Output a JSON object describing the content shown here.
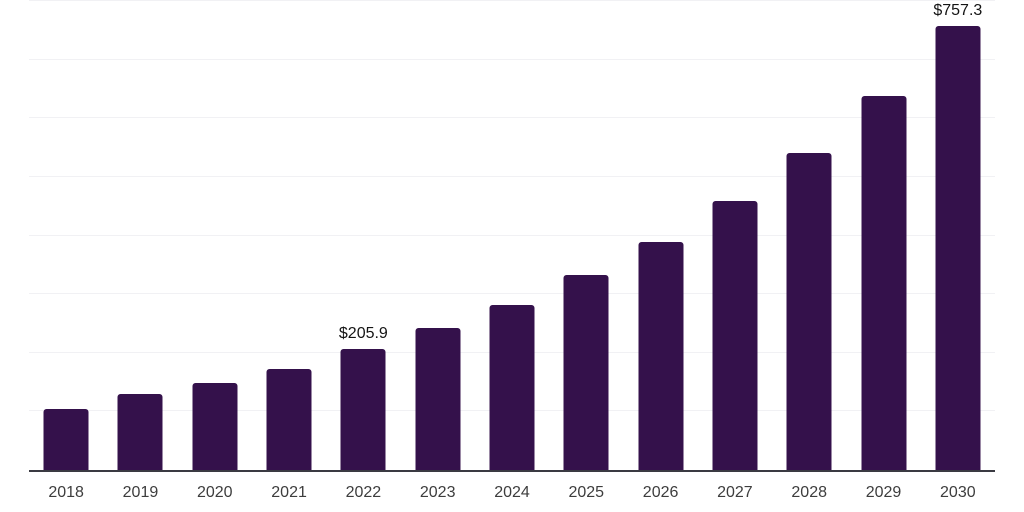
{
  "chart_data": {
    "type": "bar",
    "title": "",
    "xlabel": "",
    "ylabel": "",
    "categories": [
      "2018",
      "2019",
      "2020",
      "2021",
      "2022",
      "2023",
      "2024",
      "2025",
      "2026",
      "2027",
      "2028",
      "2029",
      "2030"
    ],
    "values": [
      104.0,
      129.6,
      147.9,
      171.7,
      205.9,
      241.7,
      280.9,
      332.1,
      388.9,
      458.8,
      540.1,
      637.9,
      757.3
    ],
    "value_labels": [
      {
        "category": "2022",
        "text": "$205.9"
      },
      {
        "category": "2030",
        "text": "$757.3"
      }
    ],
    "ylim": [
      0,
      800
    ],
    "gridline_step": 100,
    "grid": "horizontal, no y-axis tick labels",
    "legend_position": "none",
    "colors": {
      "bar": "#34114b",
      "axis_line": "#3a3a42",
      "gridline": "#f1f1f4",
      "value_label_text": "#141414",
      "tick_label_text": "#3d3d3d",
      "background": "#ffffff"
    }
  }
}
